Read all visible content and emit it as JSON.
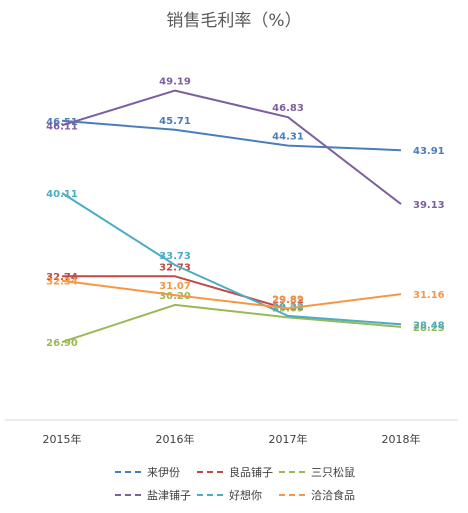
{
  "chart_data": {
    "type": "line",
    "title": "销售毛利率（%）",
    "categories": [
      "2015年",
      "2016年",
      "2017年",
      "2018年"
    ],
    "ylim": [
      20,
      55
    ],
    "grid": false,
    "legend_position": "bottom",
    "series": [
      {
        "name": "来伊份",
        "color": "#4a7ebb",
        "values": [
          46.51,
          45.71,
          44.31,
          43.91
        ]
      },
      {
        "name": "良品铺子",
        "color": "#be4b48",
        "values": [
          32.74,
          32.73,
          29.82,
          null
        ]
      },
      {
        "name": "三只松鼠",
        "color": "#98b954",
        "values": [
          26.9,
          30.2,
          29.09,
          28.25
        ]
      },
      {
        "name": "盐津铺子",
        "color": "#7d5fa0",
        "values": [
          46.11,
          49.19,
          46.83,
          39.13
        ]
      },
      {
        "name": "好想你",
        "color": "#4bacc6",
        "values": [
          40.11,
          33.73,
          29.22,
          28.48
        ]
      },
      {
        "name": "洽洽食品",
        "color": "#f79646",
        "values": [
          32.34,
          31.07,
          29.89,
          31.16
        ]
      }
    ]
  }
}
